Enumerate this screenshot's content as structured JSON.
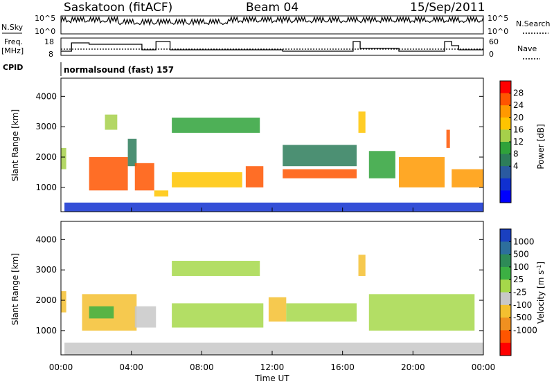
{
  "header": {
    "station": "Saskatoon (fitACF)",
    "beam": "Beam 04",
    "date": "15/Sep/2011"
  },
  "noise_panel": {
    "left_label": "N.Sky",
    "left_ticks": [
      "10^5",
      "10^0"
    ],
    "right_label": "N.Search",
    "right_ticks": [
      "10^5",
      "10^0"
    ]
  },
  "freq_panel": {
    "left_label_line1": "Freq.",
    "left_label_line2": "[MHz]",
    "left_ticks": [
      "18",
      "8"
    ],
    "right_label": "Nave",
    "right_ticks": [
      "60",
      "0"
    ]
  },
  "cpid": {
    "label": "CPID",
    "value": "normalsound (fast) 157"
  },
  "chart_data": [
    {
      "type": "heatmap",
      "title": "",
      "ylabel": "Slant Range [km]",
      "xlabel": "",
      "ylim": [
        200,
        4600
      ],
      "yticks": [
        "4000",
        "3000",
        "2000",
        "1000"
      ],
      "colorbar": {
        "label": "Power [dB]",
        "ticks": [
          "28",
          "24",
          "20",
          "16",
          "12",
          "8",
          "4"
        ],
        "colors": [
          "#ff0000",
          "#ff5500",
          "#ff9900",
          "#ffc400",
          "#a6d04a",
          "#2fa23a",
          "#2d7d5a",
          "#2a5aa0",
          "#1030d0",
          "#0000ff"
        ]
      },
      "bands": [
        {
          "t0": 0.0,
          "t1": 0.3,
          "r0": 1600,
          "r1": 2300,
          "level": 18
        },
        {
          "t0": 1.6,
          "t1": 3.8,
          "r0": 900,
          "r1": 2000,
          "level": 28
        },
        {
          "t0": 2.5,
          "t1": 3.2,
          "r0": 2900,
          "r1": 3400,
          "level": 18
        },
        {
          "t0": 3.8,
          "t1": 4.3,
          "r0": 1700,
          "r1": 2600,
          "level": 12
        },
        {
          "t0": 4.2,
          "t1": 5.3,
          "r0": 900,
          "r1": 1800,
          "level": 28
        },
        {
          "t0": 5.3,
          "t1": 6.1,
          "r0": 700,
          "r1": 900,
          "level": 20
        },
        {
          "t0": 6.3,
          "t1": 11.3,
          "r0": 2800,
          "r1": 3300,
          "level": 14
        },
        {
          "t0": 6.3,
          "t1": 10.3,
          "r0": 1000,
          "r1": 1500,
          "level": 22
        },
        {
          "t0": 10.5,
          "t1": 11.5,
          "r0": 1000,
          "r1": 1700,
          "level": 28
        },
        {
          "t0": 12.6,
          "t1": 16.8,
          "r0": 1300,
          "r1": 1600,
          "level": 28
        },
        {
          "t0": 12.6,
          "t1": 16.8,
          "r0": 1700,
          "r1": 2400,
          "level": 12
        },
        {
          "t0": 16.9,
          "t1": 17.3,
          "r0": 2800,
          "r1": 3500,
          "level": 22
        },
        {
          "t0": 17.5,
          "t1": 19.0,
          "r0": 1300,
          "r1": 2200,
          "level": 16
        },
        {
          "t0": 19.2,
          "t1": 21.8,
          "r0": 1000,
          "r1": 2000,
          "level": 24
        },
        {
          "t0": 21.9,
          "t1": 22.1,
          "r0": 2300,
          "r1": 2900,
          "level": 28
        },
        {
          "t0": 22.2,
          "t1": 24.0,
          "r0": 1000,
          "r1": 1600,
          "level": 24
        },
        {
          "t0": 0.2,
          "t1": 24.0,
          "r0": 200,
          "r1": 500,
          "level": 6
        }
      ]
    },
    {
      "type": "heatmap",
      "title": "",
      "ylabel": "Slant Range [km]",
      "xlabel": "Time UT",
      "ylim": [
        200,
        4600
      ],
      "yticks": [
        "4000",
        "3000",
        "2000",
        "1000"
      ],
      "xticks": [
        "00:00",
        "04:00",
        "08:00",
        "12:00",
        "16:00",
        "20:00",
        "00:00"
      ],
      "xlim_hours": [
        0,
        24
      ],
      "colorbar": {
        "label": "Velocity [m s^-1]",
        "ticks": [
          "1000",
          "500",
          "100",
          "25",
          "-25",
          "-100",
          "-500",
          "-1000"
        ],
        "colors": [
          "#1a40c0",
          "#2d6f9c",
          "#2e8b57",
          "#3cb043",
          "#a6d84a",
          "#c8c8c8",
          "#f4c030",
          "#f09020",
          "#ff5500",
          "#ff0000"
        ]
      },
      "bands": [
        {
          "t0": 0.0,
          "t1": 0.3,
          "r0": 1600,
          "r1": 2300,
          "level": -100
        },
        {
          "t0": 1.2,
          "t1": 4.3,
          "r0": 1000,
          "r1": 2200,
          "level": -100
        },
        {
          "t0": 1.6,
          "t1": 3.0,
          "r0": 1400,
          "r1": 1800,
          "level": 100
        },
        {
          "t0": 4.2,
          "t1": 5.4,
          "r0": 1100,
          "r1": 1800,
          "level": -25
        },
        {
          "t0": 6.3,
          "t1": 11.3,
          "r0": 2800,
          "r1": 3300,
          "level": 0
        },
        {
          "t0": 6.3,
          "t1": 11.5,
          "r0": 1100,
          "r1": 1900,
          "level": 0
        },
        {
          "t0": 11.8,
          "t1": 12.8,
          "r0": 1300,
          "r1": 2100,
          "level": -300
        },
        {
          "t0": 12.8,
          "t1": 16.8,
          "r0": 1300,
          "r1": 1900,
          "level": 0
        },
        {
          "t0": 16.9,
          "t1": 17.3,
          "r0": 2800,
          "r1": 3500,
          "level": -100
        },
        {
          "t0": 17.5,
          "t1": 23.5,
          "r0": 1000,
          "r1": 2200,
          "level": 0
        },
        {
          "t0": 0.2,
          "t1": 24.0,
          "r0": 200,
          "r1": 600,
          "level": -50
        }
      ]
    }
  ]
}
